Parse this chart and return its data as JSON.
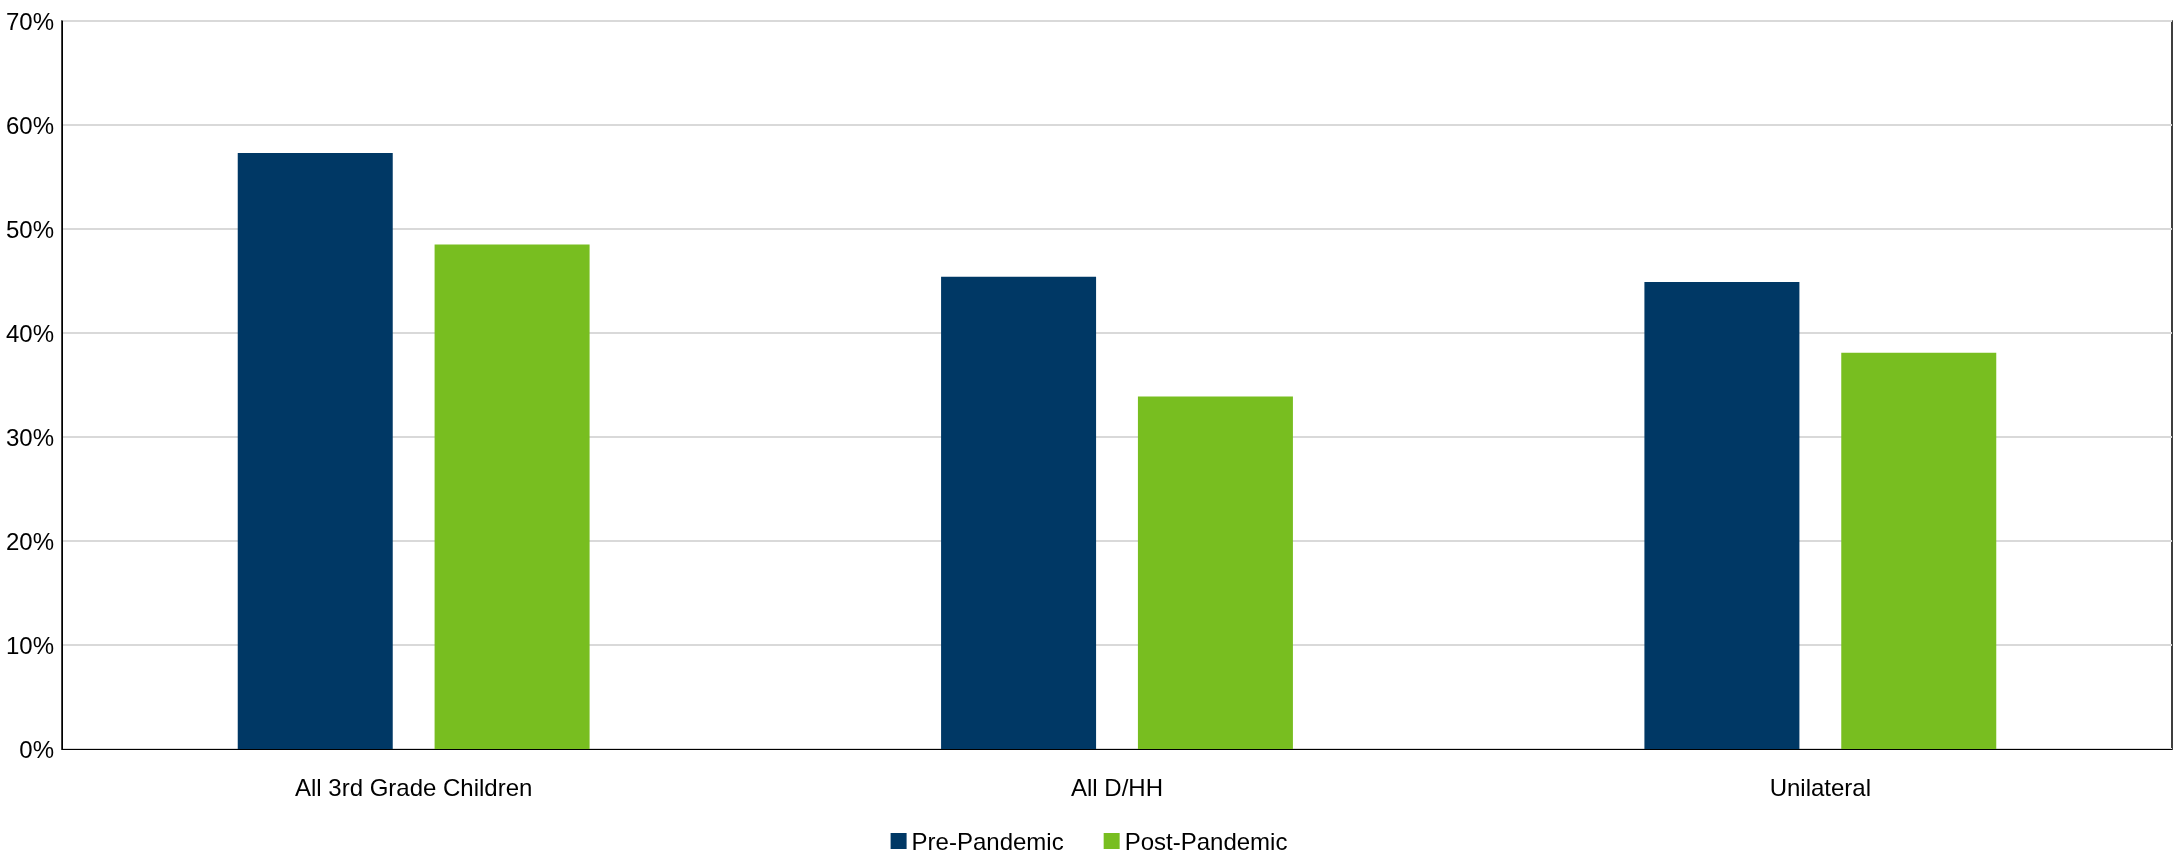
{
  "chart_data": {
    "type": "bar",
    "categories": [
      "All 3rd Grade Children",
      "All D/HH",
      "Unilateral"
    ],
    "series": [
      {
        "name": "Pre-Pandemic",
        "color": "#003865",
        "values": [
          57.3,
          45.4,
          44.9
        ]
      },
      {
        "name": "Post-Pandemic",
        "color": "#78be20",
        "values": [
          48.5,
          33.9,
          38.1
        ]
      }
    ],
    "ylim": [
      0,
      70
    ],
    "yticks": [
      {
        "value": 0,
        "label": "0%"
      },
      {
        "value": 10,
        "label": "10%"
      },
      {
        "value": 20,
        "label": "20%"
      },
      {
        "value": 30,
        "label": "30%"
      },
      {
        "value": 40,
        "label": "40%"
      },
      {
        "value": 50,
        "label": "50%"
      },
      {
        "value": 60,
        "label": "60%"
      },
      {
        "value": 70,
        "label": "70%"
      }
    ],
    "grid": "y",
    "legend": "bottom"
  }
}
